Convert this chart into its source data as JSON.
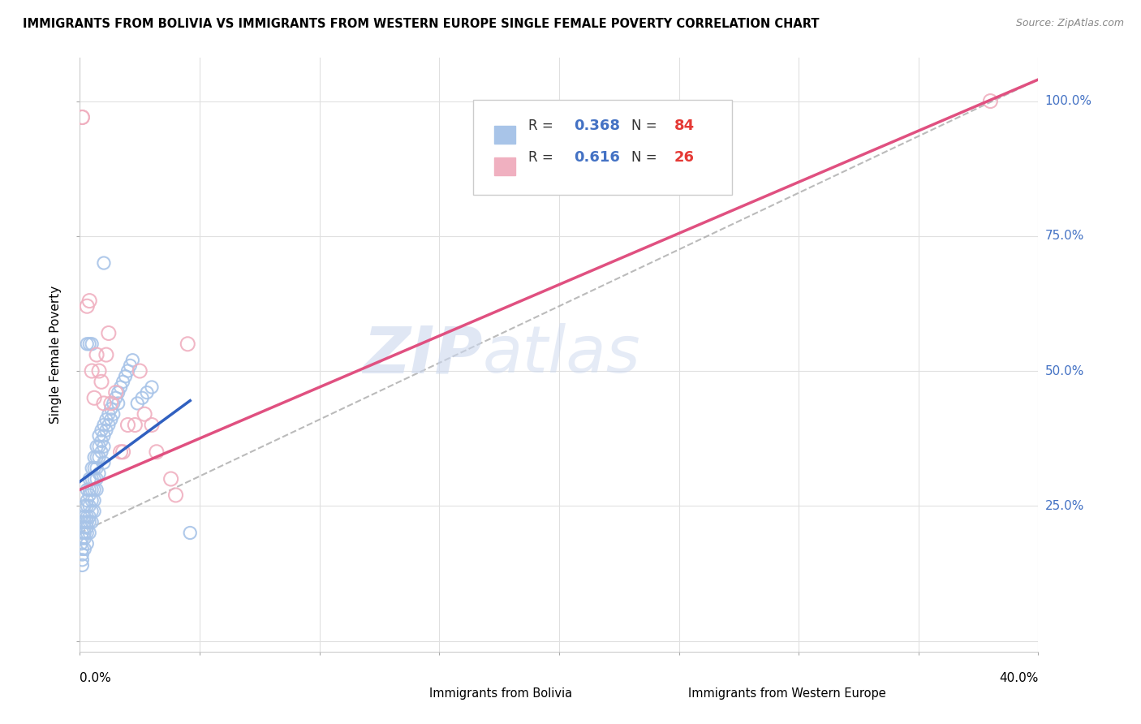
{
  "title": "IMMIGRANTS FROM BOLIVIA VS IMMIGRANTS FROM WESTERN EUROPE SINGLE FEMALE POVERTY CORRELATION CHART",
  "source": "Source: ZipAtlas.com",
  "ylabel": "Single Female Poverty",
  "right_yticks": [
    "100.0%",
    "75.0%",
    "50.0%",
    "25.0%"
  ],
  "right_ytick_vals": [
    1.0,
    0.75,
    0.5,
    0.25
  ],
  "xlim": [
    0.0,
    0.4
  ],
  "ylim": [
    -0.02,
    1.08
  ],
  "watermark_zip": "ZIP",
  "watermark_atlas": "atlas",
  "blue_color": "#a8c4e8",
  "pink_color": "#f0b0c0",
  "blue_line_color": "#3060c0",
  "pink_line_color": "#e05080",
  "dash_color": "#aaaaaa",
  "legend_blue_r": "0.368",
  "legend_blue_n": "84",
  "legend_pink_r": "0.616",
  "legend_pink_n": "26",
  "r_color": "#4472c4",
  "n_color": "#e53935",
  "bolivia_x": [
    0.0005,
    0.001,
    0.001,
    0.001,
    0.001,
    0.001,
    0.001,
    0.001,
    0.002,
    0.002,
    0.002,
    0.002,
    0.002,
    0.002,
    0.002,
    0.003,
    0.003,
    0.003,
    0.003,
    0.003,
    0.003,
    0.003,
    0.003,
    0.004,
    0.004,
    0.004,
    0.004,
    0.004,
    0.004,
    0.004,
    0.005,
    0.005,
    0.005,
    0.005,
    0.005,
    0.005,
    0.006,
    0.006,
    0.006,
    0.006,
    0.006,
    0.006,
    0.007,
    0.007,
    0.007,
    0.007,
    0.007,
    0.008,
    0.008,
    0.008,
    0.008,
    0.009,
    0.009,
    0.009,
    0.01,
    0.01,
    0.01,
    0.01,
    0.011,
    0.011,
    0.012,
    0.012,
    0.013,
    0.013,
    0.014,
    0.014,
    0.015,
    0.016,
    0.016,
    0.017,
    0.018,
    0.019,
    0.02,
    0.021,
    0.022,
    0.024,
    0.026,
    0.028,
    0.03,
    0.046,
    0.003,
    0.004,
    0.005,
    0.01
  ],
  "bolivia_y": [
    0.18,
    0.22,
    0.2,
    0.19,
    0.17,
    0.16,
    0.15,
    0.14,
    0.25,
    0.23,
    0.22,
    0.21,
    0.2,
    0.19,
    0.17,
    0.28,
    0.26,
    0.25,
    0.23,
    0.22,
    0.21,
    0.2,
    0.18,
    0.3,
    0.28,
    0.27,
    0.25,
    0.23,
    0.22,
    0.2,
    0.32,
    0.3,
    0.28,
    0.26,
    0.24,
    0.22,
    0.34,
    0.32,
    0.3,
    0.28,
    0.26,
    0.24,
    0.36,
    0.34,
    0.32,
    0.3,
    0.28,
    0.38,
    0.36,
    0.34,
    0.31,
    0.39,
    0.37,
    0.35,
    0.4,
    0.38,
    0.36,
    0.33,
    0.41,
    0.39,
    0.42,
    0.4,
    0.43,
    0.41,
    0.44,
    0.42,
    0.45,
    0.46,
    0.44,
    0.47,
    0.48,
    0.49,
    0.5,
    0.51,
    0.52,
    0.44,
    0.45,
    0.46,
    0.47,
    0.2,
    0.55,
    0.55,
    0.55,
    0.7
  ],
  "western_x": [
    0.001,
    0.001,
    0.003,
    0.004,
    0.005,
    0.006,
    0.007,
    0.008,
    0.009,
    0.01,
    0.011,
    0.012,
    0.013,
    0.015,
    0.017,
    0.018,
    0.02,
    0.023,
    0.025,
    0.027,
    0.03,
    0.032,
    0.038,
    0.04,
    0.045,
    0.38
  ],
  "western_y": [
    0.97,
    0.97,
    0.62,
    0.63,
    0.5,
    0.45,
    0.53,
    0.5,
    0.48,
    0.44,
    0.53,
    0.57,
    0.44,
    0.46,
    0.35,
    0.35,
    0.4,
    0.4,
    0.5,
    0.42,
    0.4,
    0.35,
    0.3,
    0.27,
    0.55,
    1.0
  ],
  "blue_line_x": [
    0.0,
    0.046
  ],
  "blue_line_y": [
    0.295,
    0.445
  ],
  "pink_line_x": [
    0.0,
    0.4
  ],
  "pink_line_y": [
    0.28,
    1.04
  ],
  "dash_line_x": [
    0.0,
    0.4
  ],
  "dash_line_y": [
    0.2,
    1.04
  ]
}
